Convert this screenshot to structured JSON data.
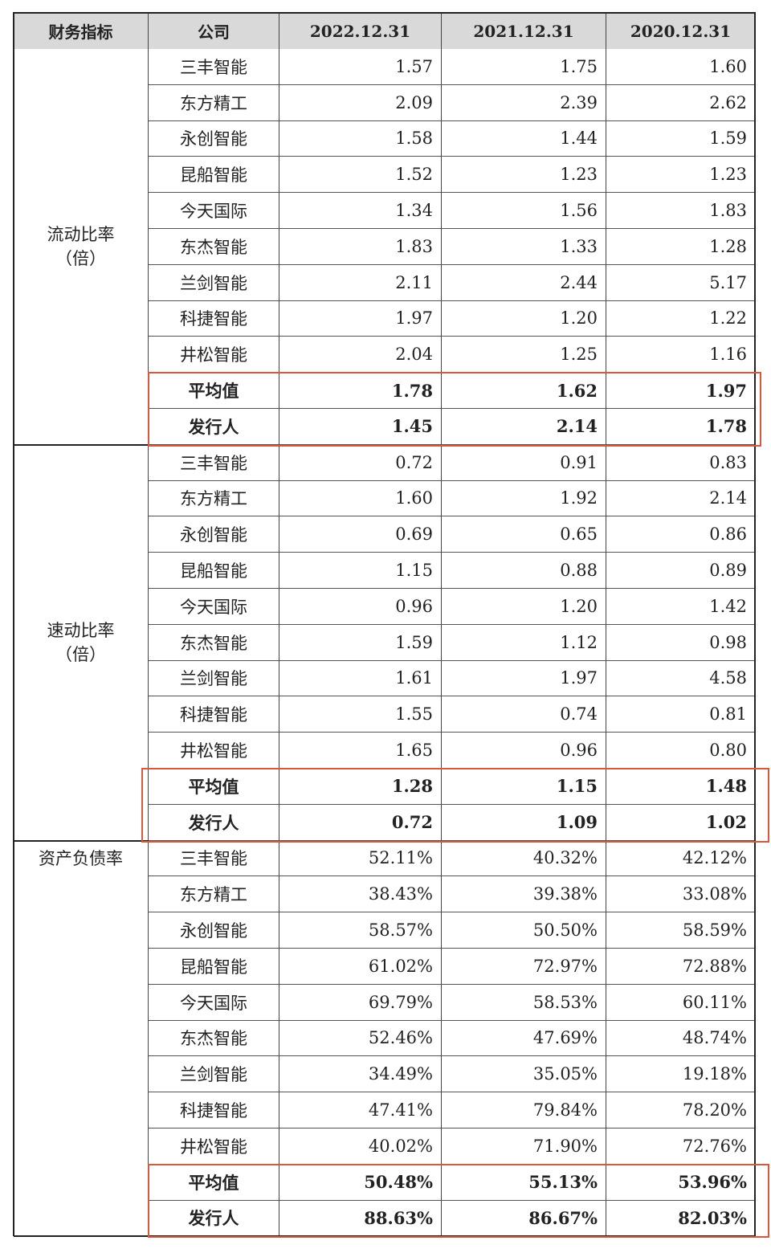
{
  "header": {
    "metric": "财务指标",
    "company": "公司",
    "years": [
      "2022.12.31",
      "2021.12.31",
      "2020.12.31"
    ]
  },
  "sections": [
    {
      "metric_name": "流动比率",
      "metric_unit": "（倍）",
      "rows": [
        {
          "company": "三丰智能",
          "values": [
            "1.57",
            "1.75",
            "1.60"
          ],
          "bold": false
        },
        {
          "company": "东方精工",
          "values": [
            "2.09",
            "2.39",
            "2.62"
          ],
          "bold": false
        },
        {
          "company": "永创智能",
          "values": [
            "1.58",
            "1.44",
            "1.59"
          ],
          "bold": false
        },
        {
          "company": "昆船智能",
          "values": [
            "1.52",
            "1.23",
            "1.23"
          ],
          "bold": false
        },
        {
          "company": "今天国际",
          "values": [
            "1.34",
            "1.56",
            "1.83"
          ],
          "bold": false
        },
        {
          "company": "东杰智能",
          "values": [
            "1.83",
            "1.33",
            "1.28"
          ],
          "bold": false
        },
        {
          "company": "兰剑智能",
          "values": [
            "2.11",
            "2.44",
            "5.17"
          ],
          "bold": false
        },
        {
          "company": "科捷智能",
          "values": [
            "1.97",
            "1.20",
            "1.22"
          ],
          "bold": false
        },
        {
          "company": "井松智能",
          "values": [
            "2.04",
            "1.25",
            "1.16"
          ],
          "bold": false
        },
        {
          "company": "平均值",
          "values": [
            "1.78",
            "1.62",
            "1.97"
          ],
          "bold": true
        },
        {
          "company": "发行人",
          "values": [
            "1.45",
            "2.14",
            "1.78"
          ],
          "bold": true
        }
      ]
    },
    {
      "metric_name": "速动比率",
      "metric_unit": "（倍）",
      "rows": [
        {
          "company": "三丰智能",
          "values": [
            "0.72",
            "0.91",
            "0.83"
          ],
          "bold": false
        },
        {
          "company": "东方精工",
          "values": [
            "1.60",
            "1.92",
            "2.14"
          ],
          "bold": false
        },
        {
          "company": "永创智能",
          "values": [
            "0.69",
            "0.65",
            "0.86"
          ],
          "bold": false
        },
        {
          "company": "昆船智能",
          "values": [
            "1.15",
            "0.88",
            "0.89"
          ],
          "bold": false
        },
        {
          "company": "今天国际",
          "values": [
            "0.96",
            "1.20",
            "1.42"
          ],
          "bold": false
        },
        {
          "company": "东杰智能",
          "values": [
            "1.59",
            "1.12",
            "0.98"
          ],
          "bold": false
        },
        {
          "company": "兰剑智能",
          "values": [
            "1.61",
            "1.97",
            "4.58"
          ],
          "bold": false
        },
        {
          "company": "科捷智能",
          "values": [
            "1.55",
            "0.74",
            "0.81"
          ],
          "bold": false
        },
        {
          "company": "井松智能",
          "values": [
            "1.65",
            "0.96",
            "0.80"
          ],
          "bold": false
        },
        {
          "company": "平均值",
          "values": [
            "1.28",
            "1.15",
            "1.48"
          ],
          "bold": true
        },
        {
          "company": "发行人",
          "values": [
            "0.72",
            "1.09",
            "1.02"
          ],
          "bold": true
        }
      ]
    },
    {
      "metric_name": "资产负债率",
      "metric_unit": "",
      "rows": [
        {
          "company": "三丰智能",
          "values": [
            "52.11%",
            "40.32%",
            "42.12%"
          ],
          "bold": false
        },
        {
          "company": "东方精工",
          "values": [
            "38.43%",
            "39.38%",
            "33.08%"
          ],
          "bold": false
        },
        {
          "company": "永创智能",
          "values": [
            "58.57%",
            "50.50%",
            "58.59%"
          ],
          "bold": false
        },
        {
          "company": "昆船智能",
          "values": [
            "61.02%",
            "72.97%",
            "72.88%"
          ],
          "bold": false
        },
        {
          "company": "今天国际",
          "values": [
            "69.79%",
            "58.53%",
            "60.11%"
          ],
          "bold": false
        },
        {
          "company": "东杰智能",
          "values": [
            "52.46%",
            "47.69%",
            "48.74%"
          ],
          "bold": false
        },
        {
          "company": "兰剑智能",
          "values": [
            "34.49%",
            "35.05%",
            "19.18%"
          ],
          "bold": false
        },
        {
          "company": "科捷智能",
          "values": [
            "47.41%",
            "79.84%",
            "78.20%"
          ],
          "bold": false
        },
        {
          "company": "井松智能",
          "values": [
            "40.02%",
            "71.90%",
            "72.76%"
          ],
          "bold": false
        },
        {
          "company": "平均值",
          "values": [
            "50.48%",
            "55.13%",
            "53.96%"
          ],
          "bold": true
        },
        {
          "company": "发行人",
          "values": [
            "88.63%",
            "86.67%",
            "82.03%"
          ],
          "bold": true
        }
      ]
    }
  ],
  "colors": {
    "highlight_box": "#d9573a",
    "header_bg": "#d9d9d9"
  }
}
